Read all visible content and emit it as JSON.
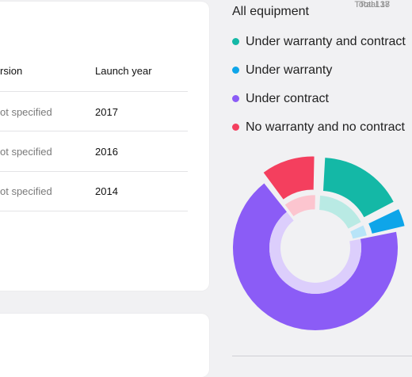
{
  "table_card": {
    "total": "Total 138",
    "headers": [
      "rsion",
      "Launch year"
    ],
    "rows": [
      {
        "version": "ot specified",
        "year": "2017"
      },
      {
        "version": "ot specified",
        "year": "2016"
      },
      {
        "version": "ot specified",
        "year": "2014"
      }
    ]
  },
  "second_card": {
    "total": "Total 17"
  },
  "equipment": {
    "title": "All equipment",
    "legend": [
      {
        "label": "Under warranty and contract",
        "color": "#14b8a6"
      },
      {
        "label": "Under warranty",
        "color": "#0ea5e9"
      },
      {
        "label": "Under contract",
        "color": "#8b5cf6"
      },
      {
        "label": "No warranty and no contract",
        "color": "#f43f5e"
      }
    ]
  },
  "chart_data": {
    "type": "pie",
    "variant": "donut",
    "categories": [
      "Under warranty and contract",
      "Under warranty",
      "Under contract",
      "No warranty and no contract"
    ],
    "values": [
      17,
      4,
      68,
      11
    ],
    "colors": [
      "#14b8a6",
      "#0ea5e9",
      "#8b5cf6",
      "#f43f5e"
    ],
    "exploded": true,
    "legend": "top"
  }
}
